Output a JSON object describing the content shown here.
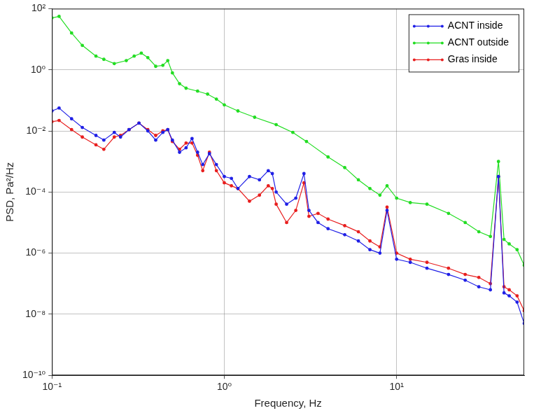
{
  "chart_data": {
    "type": "line",
    "x_label": "Frequency, Hz",
    "y_label": "PSD, Pa²/Hz",
    "log": true,
    "grid": true,
    "legend": "upper right",
    "xlim": [
      0.1,
      55
    ],
    "ylim": [
      1e-10,
      100
    ],
    "xticks": [
      {
        "value": 0.1,
        "label": "10⁻¹"
      },
      {
        "value": 1,
        "label": "10⁰"
      },
      {
        "value": 10,
        "label": "10¹"
      }
    ],
    "yticks": [
      {
        "value": 1e-10,
        "label": "10⁻¹⁰"
      },
      {
        "value": 1e-08,
        "label": "10⁻⁸"
      },
      {
        "value": 1e-06,
        "label": "10⁻⁶"
      },
      {
        "value": 0.0001,
        "label": "10⁻⁴"
      },
      {
        "value": 0.01,
        "label": "10⁻²"
      },
      {
        "value": 1,
        "label": "10⁰"
      },
      {
        "value": 100,
        "label": "10²"
      }
    ],
    "series": [
      {
        "name": "ACNT inside",
        "color": "#1f1fe6",
        "marker": "circle",
        "line_style": "solid",
        "x": [
          0.1,
          0.11,
          0.13,
          0.15,
          0.18,
          0.2,
          0.23,
          0.25,
          0.28,
          0.32,
          0.36,
          0.4,
          0.44,
          0.47,
          0.5,
          0.55,
          0.6,
          0.65,
          0.7,
          0.75,
          0.82,
          0.9,
          1,
          1.1,
          1.2,
          1.4,
          1.6,
          1.8,
          1.9,
          2,
          2.3,
          2.6,
          2.9,
          3.1,
          3.5,
          4,
          5,
          6,
          7,
          8,
          8.8,
          10,
          12,
          15,
          20,
          25,
          30,
          35,
          39,
          42,
          45,
          50,
          55
        ],
        "values": [
          0.045,
          0.056,
          0.025,
          0.013,
          0.0071,
          0.005,
          0.0089,
          0.0063,
          0.011,
          0.018,
          0.01,
          0.005,
          0.0089,
          0.011,
          0.005,
          0.002,
          0.0028,
          0.0056,
          0.002,
          0.00079,
          0.0018,
          0.00079,
          0.00032,
          0.00028,
          0.00013,
          0.00032,
          0.00025,
          0.0005,
          0.0004,
          0.0001,
          4e-05,
          6.3e-05,
          0.0004,
          2.5e-05,
          1e-05,
          6.3e-06,
          4e-06,
          2.5e-06,
          1.3e-06,
          1e-06,
          2.5e-05,
          6.3e-07,
          5e-07,
          3.2e-07,
          2e-07,
          1.3e-07,
          7.9e-08,
          6.3e-08,
          0.00032,
          5e-08,
          4e-08,
          2.5e-08,
          5e-09
        ]
      },
      {
        "name": "ACNT outside",
        "color": "#22dd22",
        "marker": "circle",
        "line_style": "solid",
        "x": [
          0.1,
          0.11,
          0.13,
          0.15,
          0.18,
          0.2,
          0.23,
          0.27,
          0.3,
          0.33,
          0.36,
          0.4,
          0.44,
          0.47,
          0.5,
          0.55,
          0.6,
          0.7,
          0.8,
          0.9,
          1,
          1.2,
          1.5,
          2,
          2.5,
          3,
          4,
          5,
          6,
          7,
          8,
          8.8,
          10,
          12,
          15,
          20,
          25,
          30,
          35,
          39,
          42,
          45,
          50,
          55
        ],
        "values": [
          50,
          56,
          16,
          6.3,
          2.8,
          2.2,
          1.6,
          2,
          2.8,
          3.5,
          2.5,
          1.3,
          1.4,
          2,
          0.79,
          0.35,
          0.25,
          0.2,
          0.16,
          0.11,
          0.071,
          0.045,
          0.028,
          0.016,
          0.0089,
          0.0045,
          0.0014,
          0.00063,
          0.00025,
          0.00013,
          7.9e-05,
          0.00016,
          6.3e-05,
          4.5e-05,
          4e-05,
          2e-05,
          1e-05,
          5e-06,
          3.5e-06,
          0.001,
          2.8e-06,
          2e-06,
          1.3e-06,
          4e-07
        ]
      },
      {
        "name": "Gras inside",
        "color": "#e81e1e",
        "marker": "circle",
        "line_style": "solid",
        "x": [
          0.1,
          0.11,
          0.13,
          0.15,
          0.18,
          0.2,
          0.23,
          0.25,
          0.28,
          0.32,
          0.36,
          0.4,
          0.44,
          0.47,
          0.5,
          0.55,
          0.6,
          0.65,
          0.7,
          0.75,
          0.82,
          0.9,
          1,
          1.1,
          1.2,
          1.4,
          1.6,
          1.8,
          1.9,
          2,
          2.3,
          2.6,
          2.9,
          3.1,
          3.5,
          4,
          5,
          6,
          7,
          8,
          8.8,
          10,
          12,
          15,
          20,
          25,
          30,
          35,
          39,
          42,
          45,
          50,
          55
        ],
        "values": [
          0.02,
          0.022,
          0.011,
          0.0063,
          0.0035,
          0.0025,
          0.0063,
          0.0071,
          0.011,
          0.018,
          0.011,
          0.0071,
          0.01,
          0.011,
          0.0045,
          0.0025,
          0.004,
          0.004,
          0.0016,
          0.0005,
          0.002,
          0.0005,
          0.0002,
          0.00016,
          0.00013,
          5e-05,
          7.9e-05,
          0.00016,
          0.00013,
          4e-05,
          1e-05,
          2.5e-05,
          0.0002,
          1.6e-05,
          2e-05,
          1.3e-05,
          7.9e-06,
          5e-06,
          2.5e-06,
          1.6e-06,
          3.2e-05,
          1e-06,
          6.3e-07,
          5e-07,
          3.2e-07,
          2e-07,
          1.6e-07,
          1e-07,
          0.00032,
          7.9e-08,
          6.3e-08,
          4e-08,
          1.3e-08
        ]
      }
    ]
  }
}
